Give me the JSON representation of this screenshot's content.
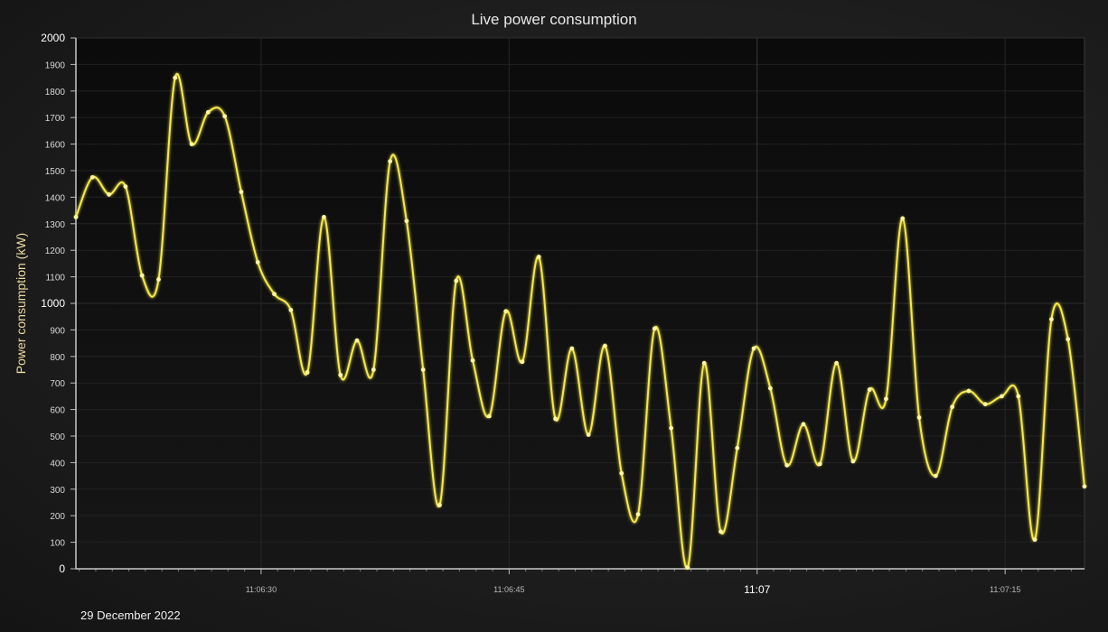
{
  "chart_data": {
    "type": "line",
    "title": "Live power consumption",
    "ylabel": "Power consumption (kW)",
    "xlabel": "",
    "date_label": "29 December 2022",
    "ylim": [
      0,
      2000
    ],
    "yticks": [
      0,
      100,
      200,
      300,
      400,
      500,
      600,
      700,
      800,
      900,
      1000,
      1100,
      1200,
      1300,
      1400,
      1500,
      1600,
      1700,
      1800,
      1900,
      2000
    ],
    "yticks_major": [
      0,
      1000,
      2000
    ],
    "xlim_seconds": [
      18.8,
      79.8
    ],
    "xticks": [
      {
        "sec": 30,
        "label": "11:06:30",
        "major": false
      },
      {
        "sec": 45,
        "label": "11:06:45",
        "major": false
      },
      {
        "sec": 60,
        "label": "11:07",
        "major": true
      },
      {
        "sec": 75,
        "label": "11:07:15",
        "major": false
      }
    ],
    "grid": true,
    "series": [
      {
        "color": "#f5e94a",
        "x": [
          18.8,
          19.8,
          20.8,
          21.8,
          22.8,
          23.8,
          24.8,
          25.8,
          26.8,
          27.8,
          28.8,
          29.8,
          30.8,
          31.8,
          32.8,
          33.8,
          34.8,
          35.8,
          36.8,
          37.8,
          38.8,
          39.8,
          40.8,
          41.8,
          42.8,
          43.8,
          44.8,
          45.8,
          46.8,
          47.8,
          48.8,
          49.8,
          50.8,
          51.8,
          52.8,
          53.8,
          54.8,
          55.8,
          56.8,
          57.8,
          58.8,
          59.8,
          60.8,
          61.8,
          62.8,
          63.8,
          64.8,
          65.8,
          66.8,
          67.8,
          68.8,
          69.8,
          70.8,
          71.8,
          72.8,
          73.8,
          74.8,
          75.8,
          76.8,
          77.8,
          78.8,
          79.8
        ],
        "y": [
          1325,
          1475,
          1410,
          1440,
          1105,
          1090,
          1850,
          1600,
          1720,
          1705,
          1420,
          1155,
          1035,
          975,
          740,
          1325,
          730,
          860,
          750,
          1535,
          1310,
          750,
          240,
          1085,
          785,
          575,
          970,
          780,
          1175,
          565,
          830,
          505,
          840,
          360,
          205,
          905,
          530,
          5,
          775,
          140,
          455,
          830,
          680,
          390,
          545,
          395,
          775,
          405,
          675,
          640,
          1320,
          570,
          350,
          610,
          670,
          620,
          650,
          650,
          110,
          940,
          865,
          310
        ]
      }
    ]
  }
}
